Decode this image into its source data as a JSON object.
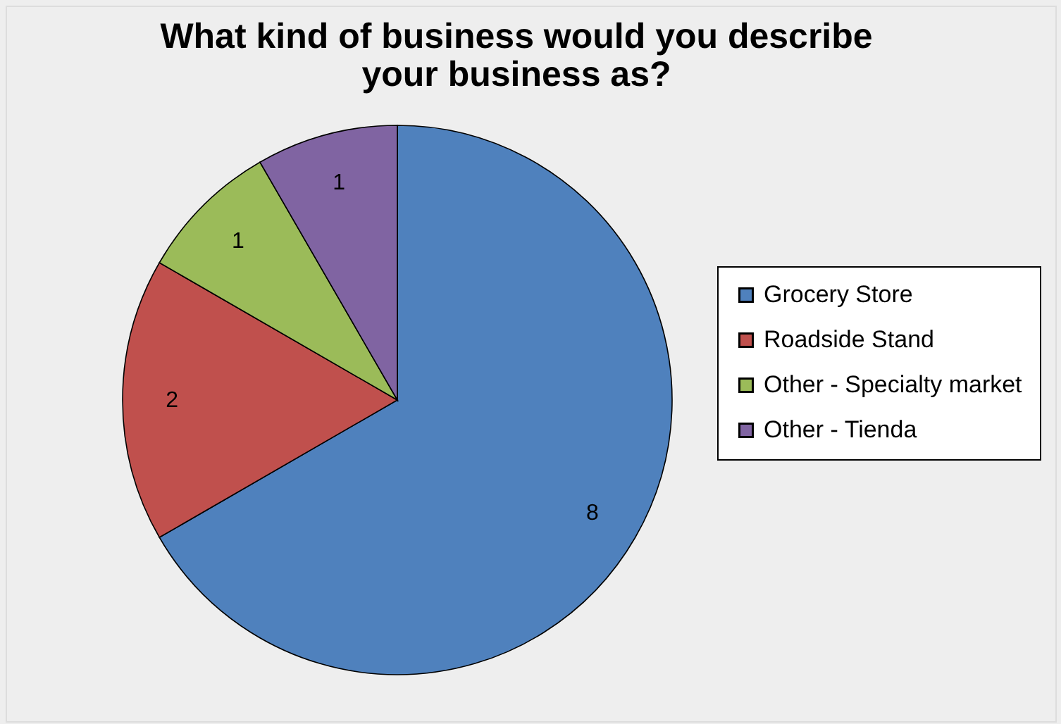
{
  "chart_data": {
    "type": "pie",
    "title": "What kind of business would you describe\nyour business as?",
    "categories": [
      "Grocery Store",
      "Roadside Stand",
      "Other - Specialty market",
      "Other - Tienda"
    ],
    "values": [
      8,
      2,
      1,
      1
    ],
    "colors": [
      "#4f81bd",
      "#c0504d",
      "#9bbb59",
      "#8064a2"
    ],
    "data_labels": true,
    "legend": "right"
  }
}
